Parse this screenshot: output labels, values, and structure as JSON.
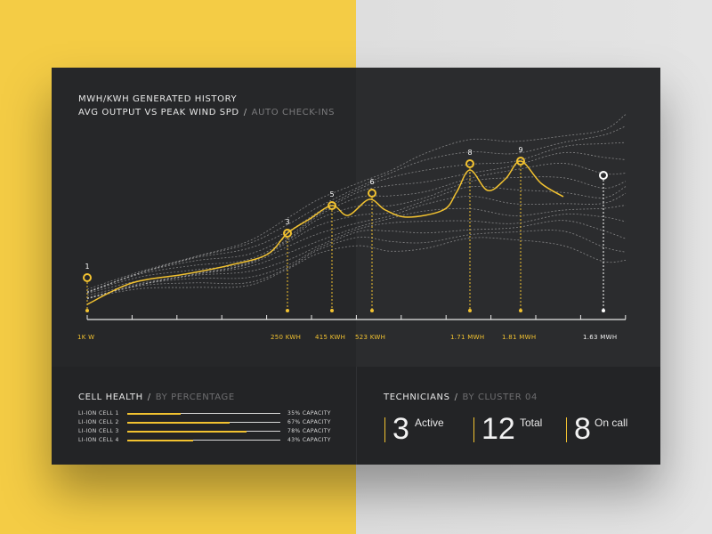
{
  "header": {
    "title_line1": "MWH/KWH GENERATED HISTORY",
    "title_line2": "AVG OUTPUT VS PEAK WIND SPD",
    "title_line2_suffix": "AUTO CHECK-INS",
    "separator": "/"
  },
  "colors": {
    "accent": "#f2c230",
    "panel": "#262729",
    "left_bg": "#f4cc45",
    "right_bg": "#e0e0e0",
    "marker_white": "#ffffff"
  },
  "chart_data": {
    "type": "line",
    "markers": [
      {
        "id": "1",
        "value_label": "1K W",
        "highlight": true
      },
      {
        "id": "3",
        "value_label": "250 KWH",
        "highlight": true
      },
      {
        "id": "5",
        "value_label": "415 KWH",
        "highlight": true
      },
      {
        "id": "6",
        "value_label": "523 KWH",
        "highlight": true
      },
      {
        "id": "8",
        "value_label": "1.71 MWH",
        "highlight": true
      },
      {
        "id": "9",
        "value_label": "1.81 MWH",
        "highlight": true
      },
      {
        "id": "",
        "value_label": "1.63 MWH",
        "highlight": false
      }
    ]
  },
  "cell_health": {
    "title": "CELL HEALTH",
    "subtitle": "BY PERCENTAGE",
    "cells": [
      {
        "name": "LI-ION CELL 1",
        "percent": 35,
        "capacity_label": "35% CAPACITY"
      },
      {
        "name": "LI-ION CELL 2",
        "percent": 67,
        "capacity_label": "67% CAPACITY"
      },
      {
        "name": "LI-ION CELL 3",
        "percent": 78,
        "capacity_label": "78% CAPACITY"
      },
      {
        "name": "LI-ION CELL 4",
        "percent": 43,
        "capacity_label": "43% CAPACITY"
      }
    ]
  },
  "technicians": {
    "title": "TECHNICIANS",
    "subtitle": "BY CLUSTER 04",
    "stats": [
      {
        "value": "3",
        "label": "Active"
      },
      {
        "value": "12",
        "label": "Total"
      },
      {
        "value": "8",
        "label": "On call"
      }
    ]
  }
}
